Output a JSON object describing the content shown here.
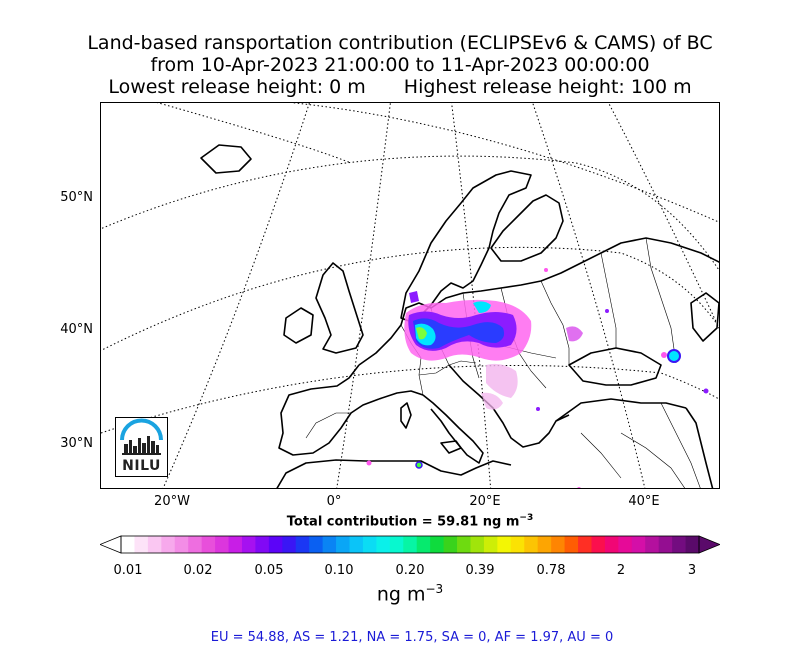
{
  "title": {
    "line1": "Land-based ransportation contribution (ECLIPSEv6 & CAMS) of BC",
    "line2": "from 10-Apr-2023 21:00:00 to 11-Apr-2023 00:00:00",
    "line3_left": "Lowest release height: 0 m",
    "line3_right": "Highest release height: 100 m"
  },
  "map": {
    "projection": "stereographic",
    "lat_labels": [
      "50°N",
      "40°N",
      "30°N"
    ],
    "lon_labels": [
      "20°W",
      "0°",
      "20°E",
      "40°E"
    ],
    "graticule": "dotted",
    "logo": {
      "text": "NILU",
      "icon": "nilu-city-logo-icon"
    }
  },
  "total": {
    "prefix": "Total contribution = 59.81 ng m",
    "exponent": "−3"
  },
  "colorbar": {
    "tick_labels": [
      "0.01",
      "0.02",
      "0.05",
      "0.10",
      "0.20",
      "0.39",
      "0.78",
      "2",
      "3"
    ],
    "unit_base": "ng m",
    "unit_exponent": "−3",
    "colors": [
      "#ffffff",
      "#fde3f8",
      "#fac7f2",
      "#f7a9ec",
      "#f38de6",
      "#ee6ee0",
      "#e84fdb",
      "#dc36dd",
      "#c81ee6",
      "#a611f0",
      "#8109f5",
      "#5c04f8",
      "#3a16f5",
      "#1b37f4",
      "#0a60f2",
      "#0a84f4",
      "#0aa6f6",
      "#0bc4f8",
      "#0bdcf4",
      "#0af0ea",
      "#08f8cf",
      "#07f5a5",
      "#06ea6e",
      "#0fdb3d",
      "#3ad31c",
      "#6edb10",
      "#a1e40b",
      "#cdee07",
      "#f3f604",
      "#fbe203",
      "#fcc403",
      "#fda502",
      "#fe8502",
      "#ff5d03",
      "#ff2f24",
      "#fb0f4d",
      "#f10675",
      "#e60a98",
      "#d40fa8",
      "#b4109e",
      "#940e91",
      "#730c80",
      "#5a0a6a"
    ]
  },
  "regions": {
    "text": "EU = 54.88,  AS = 1.21,  NA = 1.75,  SA = 0,  AF = 1.97,  AU = 0"
  },
  "plume": {
    "description_colors": [
      "#ff55ee",
      "#8a20ff",
      "#3040ff",
      "#00e0ff",
      "#40ff40"
    ]
  }
}
